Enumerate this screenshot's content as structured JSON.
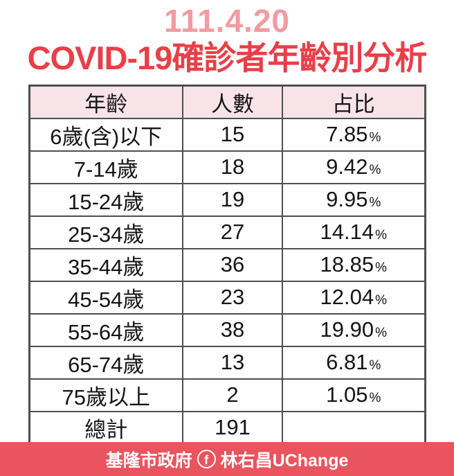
{
  "header": {
    "date": "111.4.20",
    "title": "COVID-19確診者年齡別分析"
  },
  "table": {
    "columns": [
      "年齡",
      "人數",
      "占比"
    ],
    "rows": [
      {
        "age": "6歲(含)以下",
        "count": "15",
        "pct": "7.85",
        "pct_sym": "%"
      },
      {
        "age": "7-14歲",
        "count": "18",
        "pct": "9.42",
        "pct_sym": "%"
      },
      {
        "age": "15-24歲",
        "count": "19",
        "pct": "9.95",
        "pct_sym": "%"
      },
      {
        "age": "25-34歲",
        "count": "27",
        "pct": "14.14",
        "pct_sym": "%"
      },
      {
        "age": "35-44歲",
        "count": "36",
        "pct": "18.85",
        "pct_sym": "%"
      },
      {
        "age": "45-54歲",
        "count": "23",
        "pct": "12.04",
        "pct_sym": "%"
      },
      {
        "age": "55-64歲",
        "count": "38",
        "pct": "19.90",
        "pct_sym": "%"
      },
      {
        "age": "65-74歲",
        "count": "13",
        "pct": "6.81",
        "pct_sym": "%"
      },
      {
        "age": "75歲以上",
        "count": "2",
        "pct": "1.05",
        "pct_sym": "%"
      },
      {
        "age": "總計",
        "count": "191",
        "pct": "",
        "pct_sym": ""
      }
    ]
  },
  "footer": {
    "org": "基隆市政府",
    "fb_letter": "f",
    "account": "林右昌UChange"
  },
  "colors": {
    "date_pink": "#F29BA1",
    "title_red": "#E83F48",
    "header_row_bg": "#F8E3E9",
    "table_border": "#4E4E4E",
    "footer_bg": "#E9545E",
    "footer_text": "#FFFFFF",
    "body_text": "#141414",
    "background": "#FFFFFF"
  },
  "chart_data": {
    "type": "table",
    "title": "COVID-19確診者年齡別分析",
    "date": "111.4.20",
    "columns": [
      "年齡",
      "人數",
      "占比"
    ],
    "categories": [
      "6歲(含)以下",
      "7-14歲",
      "15-24歲",
      "25-34歲",
      "35-44歲",
      "45-54歲",
      "55-64歲",
      "65-74歲",
      "75歲以上"
    ],
    "series": [
      {
        "name": "人數",
        "values": [
          15,
          18,
          19,
          27,
          36,
          23,
          38,
          13,
          2
        ]
      },
      {
        "name": "占比(%)",
        "values": [
          7.85,
          9.42,
          9.95,
          14.14,
          18.85,
          12.04,
          19.9,
          6.81,
          1.05
        ]
      }
    ],
    "total": {
      "label": "總計",
      "count": 191
    }
  }
}
